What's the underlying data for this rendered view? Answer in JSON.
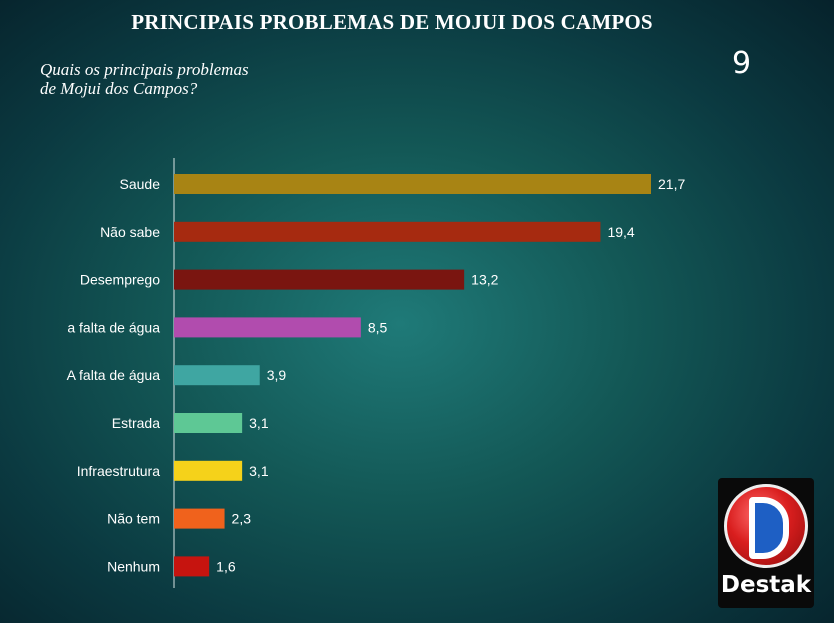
{
  "page": {
    "title": "PRINCIPAIS PROBLEMAS DE MOJUI DOS CAMPOS",
    "question": "Quais os principais problemas de Mojui dos Campos?",
    "page_number": "9",
    "logo_text": "Destak"
  },
  "chart_data": {
    "type": "bar",
    "orientation": "horizontal",
    "title": "PRINCIPAIS PROBLEMAS DE MOJUI DOS CAMPOS",
    "xlabel": "",
    "ylabel": "",
    "grid": false,
    "xlim": [
      0,
      25
    ],
    "categories": [
      "Saude",
      "Não sabe",
      "Desemprego",
      "a falta de água",
      "A falta de água",
      "Estrada",
      "Infraestrutura",
      "Não tem",
      "Nenhum"
    ],
    "values": [
      21.7,
      19.4,
      13.2,
      8.5,
      3.9,
      3.1,
      3.1,
      2.3,
      1.6
    ],
    "value_labels": [
      "21,7",
      "19,4",
      "13,2",
      "8,5",
      "3,9",
      "3,1",
      "3,1",
      "2,3",
      "1,6"
    ],
    "colors": [
      "#a88414",
      "#a62a10",
      "#7a1510",
      "#b14cae",
      "#3fa6a2",
      "#5ec895",
      "#f5d21a",
      "#f0621c",
      "#c6140f"
    ]
  }
}
